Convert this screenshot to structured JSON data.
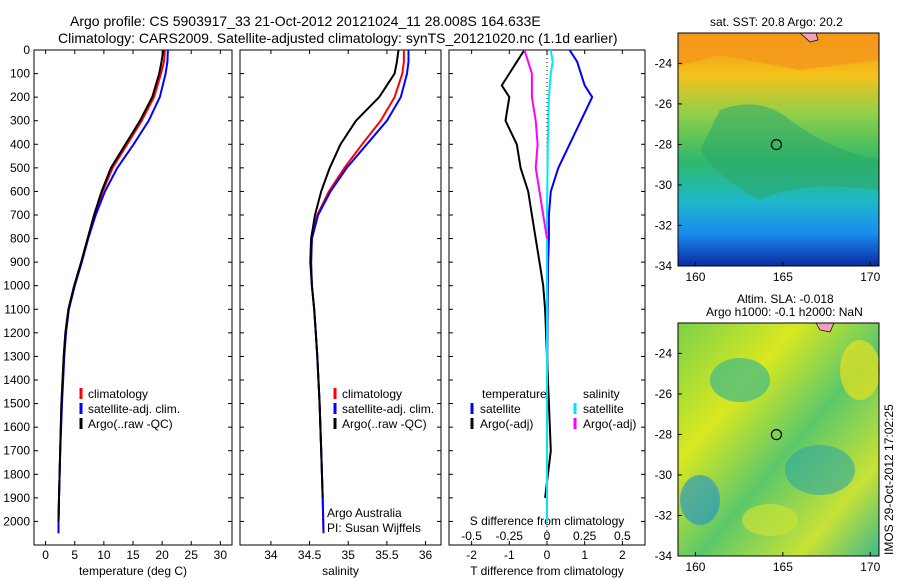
{
  "header": {
    "line1": "Argo profile: CS 5903917_33 21-Oct-2012 20121024_11 28.008S 164.633E",
    "line2": "Climatology: CARS2009. Satellite-adjusted climatology: synTS_20121020.nc (1.1d earlier)"
  },
  "colors": {
    "climatology": "#ff0000",
    "satellite": "#0000ff",
    "argo": "#000000",
    "salinity_satellite": "#00e5ff",
    "salinity_argo": "#ff00ff"
  },
  "credits": {
    "org": "Argo Australia",
    "pi": "PI: Susan Wijffels",
    "imos": "IMOS 29-Oct-2012 17:02:25"
  },
  "chart_data": [
    {
      "type": "line",
      "xlabel": "temperature (deg C)",
      "xlim": [
        -2,
        32
      ],
      "xticks": [
        0,
        5,
        10,
        15,
        20,
        25,
        30
      ],
      "ylim": [
        0,
        2100
      ],
      "yticks": [
        0,
        100,
        200,
        300,
        400,
        500,
        600,
        700,
        800,
        900,
        1000,
        1100,
        1200,
        1300,
        1400,
        1500,
        1600,
        1700,
        1800,
        1900,
        2000
      ],
      "legend": [
        "climatology",
        "satellite-adj. clim.",
        "Argo(..raw -QC)"
      ],
      "series": [
        {
          "name": "climatology",
          "color": "#ff0000",
          "x": [
            20.5,
            20.3,
            19.8,
            18.6,
            16.5,
            14.0,
            11.5,
            9.8,
            8.4,
            7.2,
            6.1,
            4.9,
            3.9,
            3.4,
            3.1,
            2.7,
            2.5,
            2.3,
            2.2,
            2.2
          ],
          "y": [
            0,
            50,
            100,
            200,
            300,
            400,
            500,
            600,
            700,
            800,
            900,
            1000,
            1100,
            1200,
            1300,
            1500,
            1700,
            1900,
            2000,
            2050
          ]
        },
        {
          "name": "satellite-adj. clim.",
          "color": "#0000ff",
          "x": [
            21.0,
            20.9,
            20.6,
            19.6,
            17.7,
            15.1,
            12.3,
            10.2,
            8.6,
            7.3,
            6.2,
            5.0,
            4.0,
            3.5,
            3.2,
            2.8,
            2.5,
            2.3,
            2.2,
            2.2
          ],
          "y": [
            0,
            50,
            100,
            200,
            300,
            400,
            500,
            600,
            700,
            800,
            900,
            1000,
            1100,
            1200,
            1300,
            1500,
            1700,
            1900,
            2000,
            2050
          ]
        },
        {
          "name": "Argo(..raw -QC)",
          "color": "#000000",
          "x": [
            20.2,
            19.9,
            19.5,
            18.3,
            16.2,
            13.7,
            11.2,
            9.6,
            8.3,
            7.2,
            6.1,
            4.9,
            3.9,
            3.4,
            3.1,
            2.7,
            2.5,
            2.3,
            2.2
          ],
          "y": [
            0,
            50,
            100,
            200,
            300,
            400,
            500,
            600,
            700,
            800,
            900,
            1000,
            1100,
            1200,
            1300,
            1500,
            1700,
            1900,
            2000
          ]
        }
      ]
    },
    {
      "type": "line",
      "xlabel": "salinity",
      "xlim": [
        33.6,
        36.2
      ],
      "xticks": [
        34,
        34.5,
        35,
        35.5,
        36
      ],
      "ylim": [
        0,
        2100
      ],
      "legend": [
        "climatology",
        "satellite-adj. clim.",
        "Argo(..raw -QC)"
      ],
      "series": [
        {
          "name": "climatology",
          "color": "#ff0000",
          "x": [
            35.72,
            35.72,
            35.7,
            35.6,
            35.42,
            35.18,
            34.95,
            34.75,
            34.6,
            34.53,
            34.52,
            34.53,
            34.56,
            34.58,
            34.6,
            34.63,
            34.65,
            34.67,
            34.68
          ],
          "y": [
            0,
            50,
            100,
            200,
            300,
            400,
            500,
            600,
            700,
            800,
            900,
            1000,
            1100,
            1200,
            1300,
            1500,
            1700,
            1900,
            2050
          ]
        },
        {
          "name": "satellite-adj. clim.",
          "color": "#0000ff",
          "x": [
            35.78,
            35.78,
            35.76,
            35.68,
            35.5,
            35.24,
            34.98,
            34.77,
            34.61,
            34.53,
            34.52,
            34.53,
            34.56,
            34.58,
            34.6,
            34.63,
            34.65,
            34.67,
            34.68
          ],
          "y": [
            0,
            50,
            100,
            200,
            300,
            400,
            500,
            600,
            700,
            800,
            900,
            1000,
            1100,
            1200,
            1300,
            1500,
            1700,
            1900,
            2050
          ]
        },
        {
          "name": "Argo(..raw -QC)",
          "color": "#000000",
          "x": [
            35.65,
            35.63,
            35.6,
            35.4,
            35.1,
            34.9,
            34.76,
            34.65,
            34.57,
            34.52,
            34.51,
            34.53,
            34.56,
            34.58,
            34.6,
            34.63,
            34.65,
            34.67
          ],
          "y": [
            0,
            50,
            100,
            200,
            300,
            400,
            500,
            600,
            700,
            800,
            900,
            1000,
            1100,
            1200,
            1300,
            1500,
            1700,
            1900
          ]
        }
      ]
    },
    {
      "type": "line",
      "xlabel": "T difference from climatology",
      "xlabel_top": "S difference from climatology",
      "xlim": [
        -2.6,
        2.6
      ],
      "xticks": [
        -2,
        -1,
        0,
        1,
        2
      ],
      "xticks_top_labels": [
        "-0.5",
        "-0.25",
        "0",
        "0.25",
        "0.5"
      ],
      "xticks_top_positions": [
        -2,
        -1,
        0,
        1,
        2
      ],
      "ylim": [
        0,
        2100
      ],
      "legend_headers": [
        "temperature",
        "salinity"
      ],
      "legend": [
        "satellite",
        "Argo(-adj)",
        "satellite",
        "Argo(-adj)"
      ],
      "series": [
        {
          "name": "satellite",
          "group": "temperature",
          "color": "#0000ff",
          "x": [
            0.6,
            0.8,
            0.9,
            1.0,
            1.2,
            0.9,
            0.6,
            0.3,
            0.1,
            0.05,
            0.05,
            0.03,
            0.02,
            0.01,
            0.0,
            0.0
          ],
          "y": [
            0,
            50,
            100,
            150,
            200,
            300,
            400,
            500,
            600,
            700,
            800,
            900,
            1000,
            1200,
            1500,
            2000
          ]
        },
        {
          "name": "Argo(-adj)",
          "group": "temperature",
          "color": "#000000",
          "x": [
            -0.6,
            -0.8,
            -1.0,
            -1.2,
            -1.0,
            -1.1,
            -0.8,
            -0.7,
            -0.5,
            -0.4,
            -0.3,
            -0.2,
            -0.1,
            -0.05,
            0.0,
            0.05,
            0.1,
            -0.05
          ],
          "y": [
            0,
            50,
            100,
            150,
            200,
            300,
            400,
            500,
            600,
            700,
            800,
            900,
            1000,
            1100,
            1300,
            1500,
            1700,
            1900
          ]
        },
        {
          "name": "satellite",
          "group": "salinity",
          "color": "#00e5ff",
          "x": [
            0.1,
            0.15,
            0.1,
            0.05,
            0.02,
            0.0,
            0.0,
            0.0,
            0.0
          ],
          "y": [
            0,
            50,
            100,
            200,
            400,
            700,
            1000,
            1500,
            2000
          ]
        },
        {
          "name": "Argo(-adj)",
          "group": "salinity",
          "color": "#ff00ff",
          "x": [
            -0.6,
            -0.5,
            -0.4,
            -0.4,
            -0.3,
            -0.25,
            -0.3,
            -0.2,
            -0.1,
            0.0
          ],
          "y": [
            0,
            50,
            100,
            200,
            300,
            400,
            500,
            600,
            700,
            800
          ]
        }
      ]
    },
    {
      "type": "heatmap",
      "title": "sat. SST: 20.8 Argo: 20.2",
      "xlim": [
        159,
        170.5
      ],
      "ylim": [
        -34,
        -22.5
      ],
      "xticks": [
        160,
        165,
        170
      ],
      "yticks": [
        -24,
        -26,
        -28,
        -30,
        -32,
        -34
      ],
      "marker": {
        "lon": 164.633,
        "lat": -28.008
      }
    },
    {
      "type": "heatmap",
      "title": "Altim. SLA: -0.018",
      "subtitle": "Argo h1000: -0.1 h2000: NaN",
      "xlim": [
        159,
        170.5
      ],
      "ylim": [
        -34,
        -22.5
      ],
      "xticks": [
        160,
        165,
        170
      ],
      "yticks": [
        -24,
        -26,
        -28,
        -30,
        -32,
        -34
      ],
      "marker": {
        "lon": 164.633,
        "lat": -28.008
      }
    }
  ]
}
